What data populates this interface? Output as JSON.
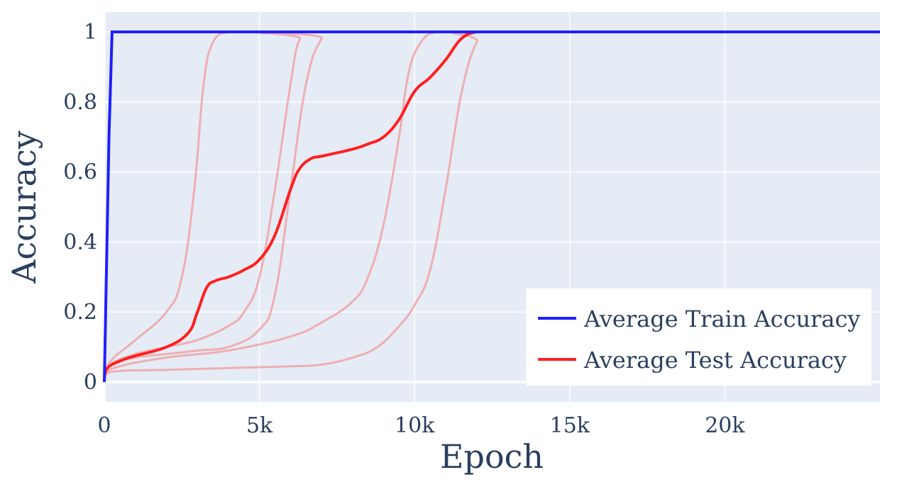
{
  "chart_data": {
    "type": "line",
    "title": "",
    "xlabel": "Epoch",
    "ylabel": "Accuracy",
    "xlim": [
      0,
      25000
    ],
    "ylim": [
      0,
      1
    ],
    "grid": true,
    "legend_position": "bottom-right",
    "x_ticks": [
      {
        "value": 0,
        "label": "0"
      },
      {
        "value": 5000,
        "label": "5k"
      },
      {
        "value": 10000,
        "label": "10k"
      },
      {
        "value": 15000,
        "label": "15k"
      },
      {
        "value": 20000,
        "label": "20k"
      }
    ],
    "y_ticks": [
      {
        "value": 0,
        "label": "0"
      },
      {
        "value": 0.2,
        "label": "0.2"
      },
      {
        "value": 0.4,
        "label": "0.4"
      },
      {
        "value": 0.6,
        "label": "0.6"
      },
      {
        "value": 0.8,
        "label": "0.8"
      },
      {
        "value": 1,
        "label": "1"
      }
    ],
    "colors": {
      "plot_background": "#e5ecf6",
      "grid": "#ffffff",
      "train": "#1f1fff",
      "test": "#ff1f1f",
      "run": "#f29a9a",
      "text": "#2a3f5f"
    },
    "series": [
      {
        "name": "Average Train Accuracy",
        "role": "train",
        "x": [
          0,
          150,
          250,
          1000,
          5000,
          10000,
          15000,
          20000,
          25000
        ],
        "y": [
          0.0,
          0.7,
          1.0,
          1.0,
          1.0,
          1.0,
          1.0,
          1.0,
          1.0
        ]
      },
      {
        "name": "Average Test Accuracy",
        "role": "test",
        "x": [
          0,
          100,
          500,
          1000,
          2000,
          2700,
          3000,
          3300,
          3600,
          4000,
          4500,
          5000,
          5500,
          6000,
          6300,
          6700,
          7000,
          8000,
          8500,
          9000,
          9500,
          10000,
          10500,
          11000,
          11500,
          12000,
          12500,
          15000,
          20000,
          25000
        ],
        "y": [
          0.01,
          0.04,
          0.06,
          0.075,
          0.1,
          0.14,
          0.2,
          0.27,
          0.29,
          0.3,
          0.32,
          0.35,
          0.42,
          0.55,
          0.61,
          0.64,
          0.645,
          0.665,
          0.68,
          0.7,
          0.75,
          0.83,
          0.87,
          0.92,
          0.98,
          1.0,
          1.0,
          1.0,
          1.0,
          1.0
        ]
      }
    ],
    "runs": [
      {
        "x": [
          0,
          200,
          1000,
          2000,
          2500,
          2900,
          3200,
          3500,
          4000,
          4500,
          25000
        ],
        "y": [
          0.01,
          0.06,
          0.12,
          0.2,
          0.3,
          0.55,
          0.85,
          0.97,
          1.0,
          1.0,
          1.0
        ]
      },
      {
        "x": [
          0,
          200,
          1000,
          2000,
          3000,
          4000,
          4500,
          5000,
          5500,
          6000,
          6300,
          6800,
          25000
        ],
        "y": [
          0.01,
          0.05,
          0.08,
          0.1,
          0.12,
          0.16,
          0.2,
          0.3,
          0.55,
          0.85,
          0.98,
          1.0,
          1.0
        ]
      },
      {
        "x": [
          0,
          200,
          1000,
          2000,
          3000,
          4000,
          5000,
          5500,
          6000,
          6500,
          7000,
          7500,
          25000
        ],
        "y": [
          0.01,
          0.05,
          0.07,
          0.08,
          0.09,
          0.1,
          0.15,
          0.25,
          0.55,
          0.85,
          0.98,
          1.0,
          1.0
        ]
      },
      {
        "x": [
          0,
          300,
          2000,
          4000,
          6000,
          7000,
          8000,
          8500,
          9000,
          9500,
          9800,
          10200,
          10700,
          11500,
          25000
        ],
        "y": [
          0.01,
          0.04,
          0.07,
          0.09,
          0.13,
          0.17,
          0.23,
          0.3,
          0.45,
          0.7,
          0.88,
          0.97,
          1.0,
          1.0,
          1.0
        ]
      },
      {
        "x": [
          0,
          300,
          2000,
          4000,
          6000,
          7000,
          8000,
          8800,
          9500,
          10000,
          10500,
          11000,
          11500,
          12000,
          12500,
          25000
        ],
        "y": [
          0.01,
          0.03,
          0.035,
          0.04,
          0.045,
          0.05,
          0.07,
          0.1,
          0.16,
          0.22,
          0.32,
          0.55,
          0.82,
          0.97,
          1.0,
          1.0
        ]
      }
    ]
  }
}
